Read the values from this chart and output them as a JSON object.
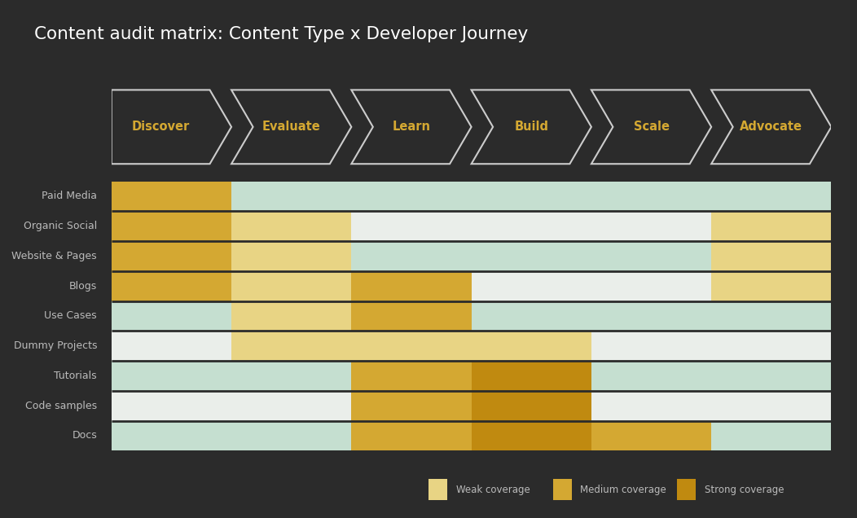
{
  "title": "Content audit matrix: Content Type x Developer Journey",
  "title_color": "#ffffff",
  "background_color": "#2b2b2b",
  "stages": [
    "Discover",
    "Evaluate",
    "Learn",
    "Build",
    "Scale",
    "Advocate"
  ],
  "content_types": [
    "Paid Media",
    "Organic Social",
    "Website & Pages",
    "Blogs",
    "Use Cases",
    "Dummy Projects",
    "Tutorials",
    "Code samples",
    "Docs"
  ],
  "row_bg_colors": [
    "#c5dfd0",
    "#eaeeea",
    "#c5dfd0",
    "#eaeeea",
    "#c5dfd0",
    "#eaeeea",
    "#c5dfd0",
    "#eaeeea",
    "#c5dfd0"
  ],
  "coverage_colors": {
    "weak": "#e8d484",
    "medium": "#d4a832",
    "strong": "#c08a10"
  },
  "matrix": [
    [
      "medium",
      "none",
      "none",
      "none",
      "none",
      "none"
    ],
    [
      "medium",
      "weak",
      "none",
      "none",
      "none",
      "weak"
    ],
    [
      "medium",
      "weak",
      "none",
      "none",
      "none",
      "weak"
    ],
    [
      "medium",
      "weak",
      "medium",
      "none",
      "none",
      "weak"
    ],
    [
      "none",
      "weak",
      "medium",
      "none",
      "none",
      "none"
    ],
    [
      "none",
      "weak",
      "weak",
      "weak",
      "none",
      "none"
    ],
    [
      "none",
      "none",
      "medium",
      "strong",
      "none",
      "none"
    ],
    [
      "none",
      "none",
      "medium",
      "strong",
      "none",
      "none"
    ],
    [
      "none",
      "none",
      "medium",
      "strong",
      "medium",
      "none"
    ]
  ],
  "legend_labels": [
    "Weak coverage",
    "Medium coverage",
    "Strong coverage"
  ],
  "legend_colors": [
    "#e8d484",
    "#d4a832",
    "#c08a10"
  ],
  "stage_text_color": "#d4a832",
  "content_text_color": "#bbbbbb",
  "arrow_bg_color": "#2b2b2b",
  "arrow_border_color": "#cccccc"
}
